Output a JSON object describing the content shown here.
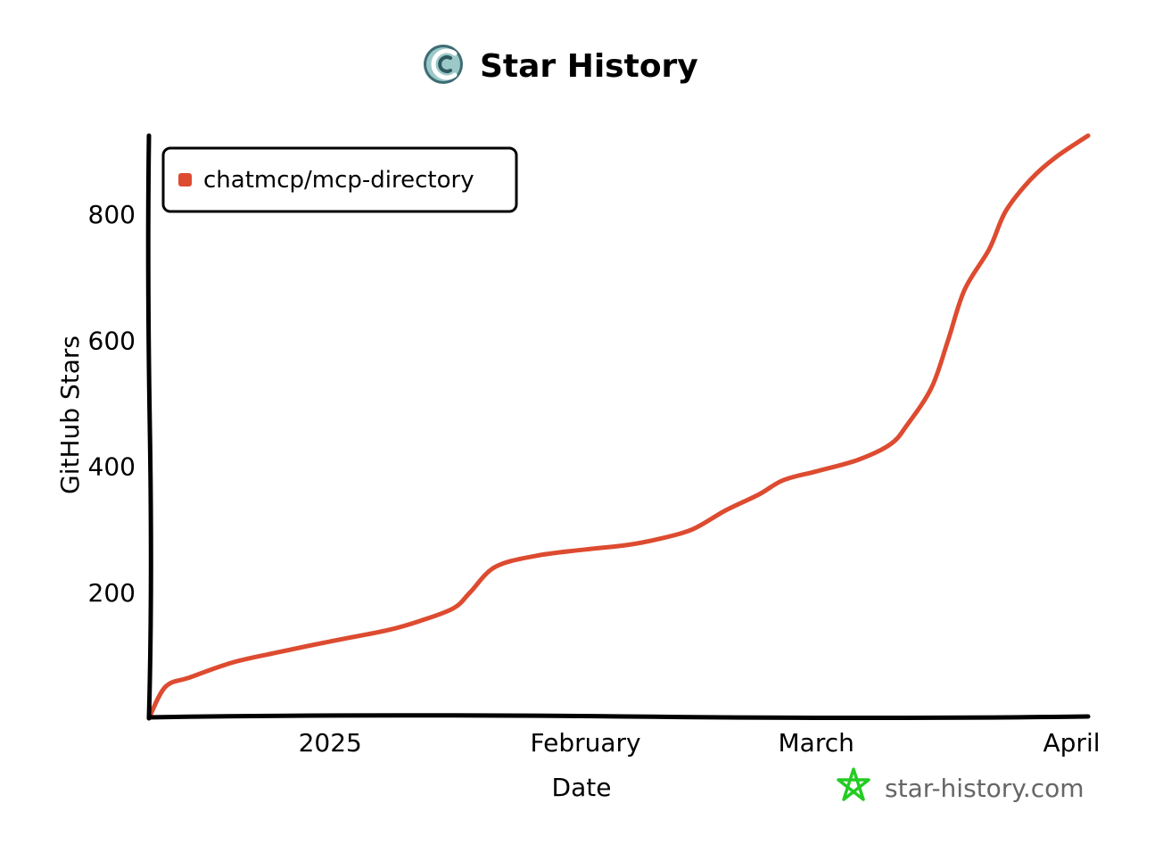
{
  "header": {
    "title": "Star History",
    "logo_icon": "star-history-logo-icon"
  },
  "watermark": {
    "text": "star-history.com",
    "icon": "star-outline-icon",
    "icon_color": "#22cc22"
  },
  "chart_data": {
    "type": "line",
    "title": "Star History",
    "xlabel": "Date",
    "ylabel": "GitHub Stars",
    "x_ticks": [
      {
        "label": "2025",
        "date": "2025-01-01"
      },
      {
        "label": "February",
        "date": "2025-02-01"
      },
      {
        "label": "March",
        "date": "2025-03-01"
      },
      {
        "label": "April",
        "date": "2025-04-01"
      }
    ],
    "y_ticks": [
      200,
      400,
      600,
      800
    ],
    "xlim": [
      "2024-12-10",
      "2025-04-03"
    ],
    "ylim": [
      0,
      925
    ],
    "grid": false,
    "legend_position": "top-left",
    "series": [
      {
        "name": "chatmcp/mcp-directory",
        "color": "#dd4b30",
        "points": [
          [
            "2024-12-10",
            0
          ],
          [
            "2024-12-12",
            50
          ],
          [
            "2024-12-15",
            65
          ],
          [
            "2024-12-20",
            88
          ],
          [
            "2024-12-25",
            103
          ],
          [
            "2025-01-01",
            122
          ],
          [
            "2025-01-08",
            140
          ],
          [
            "2025-01-12",
            155
          ],
          [
            "2025-01-16",
            175
          ],
          [
            "2025-01-18",
            200
          ],
          [
            "2025-01-21",
            240
          ],
          [
            "2025-01-26",
            258
          ],
          [
            "2025-02-01",
            268
          ],
          [
            "2025-02-06",
            275
          ],
          [
            "2025-02-10",
            285
          ],
          [
            "2025-02-14",
            300
          ],
          [
            "2025-02-18",
            330
          ],
          [
            "2025-02-22",
            355
          ],
          [
            "2025-02-25",
            378
          ],
          [
            "2025-03-01",
            392
          ],
          [
            "2025-03-06",
            410
          ],
          [
            "2025-03-10",
            435
          ],
          [
            "2025-03-12",
            465
          ],
          [
            "2025-03-15",
            525
          ],
          [
            "2025-03-17",
            600
          ],
          [
            "2025-03-19",
            680
          ],
          [
            "2025-03-22",
            745
          ],
          [
            "2025-03-24",
            805
          ],
          [
            "2025-03-27",
            855
          ],
          [
            "2025-03-30",
            890
          ],
          [
            "2025-04-03",
            925
          ]
        ]
      }
    ]
  }
}
